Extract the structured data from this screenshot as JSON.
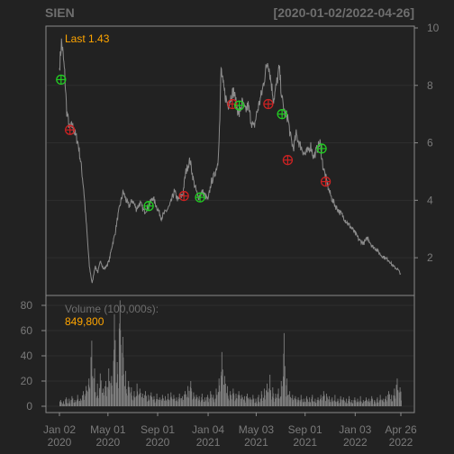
{
  "colors": {
    "background": "#222222",
    "frame": "#8a8a8a",
    "price_line": "#8c8c8c",
    "volume_bar": "#7d7d7d",
    "grid": "#2e2e2e",
    "last_label": "#ffa500",
    "buy_marker": "#22cc22",
    "sell_marker": "#cc2222",
    "text": "#7a7a7a"
  },
  "chart_data": {
    "type": "line",
    "title": "SIEN",
    "date_range": "[2020-01-02/2022-04-26]",
    "last_label": "Last 1.43",
    "x_ticks": [
      {
        "date": "2020-01-02",
        "line1": "Jan 02",
        "line2": "2020"
      },
      {
        "date": "2020-05-01",
        "line1": "May 01",
        "line2": "2020"
      },
      {
        "date": "2020-09-01",
        "line1": "Sep 01",
        "line2": "2020"
      },
      {
        "date": "2021-01-04",
        "line1": "Jan 04",
        "line2": "2021"
      },
      {
        "date": "2021-05-03",
        "line1": "May 03",
        "line2": "2021"
      },
      {
        "date": "2021-09-01",
        "line1": "Sep 01",
        "line2": "2021"
      },
      {
        "date": "2022-01-03",
        "line1": "Jan 03",
        "line2": "2022"
      },
      {
        "date": "2022-04-26",
        "line1": "Apr 26",
        "line2": "2022"
      }
    ],
    "price_axis": {
      "ticks": [
        2,
        4,
        6,
        8,
        10
      ],
      "ylim": [
        1.0,
        10.0
      ]
    },
    "price_series": {
      "name": "SIEN",
      "points": [
        [
          "2020-01-02",
          8.6
        ],
        [
          "2020-01-07",
          9.5
        ],
        [
          "2020-01-10",
          9.2
        ],
        [
          "2020-01-15",
          8.4
        ],
        [
          "2020-01-20",
          7.1
        ],
        [
          "2020-01-27",
          6.5
        ],
        [
          "2020-02-03",
          6.6
        ],
        [
          "2020-02-10",
          6.3
        ],
        [
          "2020-02-17",
          6.0
        ],
        [
          "2020-02-24",
          5.3
        ],
        [
          "2020-03-02",
          4.4
        ],
        [
          "2020-03-09",
          3.1
        ],
        [
          "2020-03-16",
          1.7
        ],
        [
          "2020-03-23",
          1.1
        ],
        [
          "2020-03-30",
          1.7
        ],
        [
          "2020-04-06",
          1.5
        ],
        [
          "2020-04-13",
          1.9
        ],
        [
          "2020-04-20",
          1.6
        ],
        [
          "2020-04-27",
          1.7
        ],
        [
          "2020-05-04",
          1.9
        ],
        [
          "2020-05-11",
          2.4
        ],
        [
          "2020-05-18",
          2.8
        ],
        [
          "2020-05-25",
          3.4
        ],
        [
          "2020-06-01",
          3.9
        ],
        [
          "2020-06-08",
          4.3
        ],
        [
          "2020-06-15",
          4.0
        ],
        [
          "2020-06-22",
          3.8
        ],
        [
          "2020-07-01",
          4.0
        ],
        [
          "2020-07-10",
          3.7
        ],
        [
          "2020-07-20",
          3.9
        ],
        [
          "2020-07-30",
          3.6
        ],
        [
          "2020-08-10",
          3.8
        ],
        [
          "2020-08-20",
          4.1
        ],
        [
          "2020-09-01",
          3.7
        ],
        [
          "2020-09-10",
          3.4
        ],
        [
          "2020-09-21",
          3.6
        ],
        [
          "2020-10-01",
          3.8
        ],
        [
          "2020-10-12",
          4.3
        ],
        [
          "2020-10-22",
          4.0
        ],
        [
          "2020-11-02",
          4.2
        ],
        [
          "2020-11-10",
          5.0
        ],
        [
          "2020-11-20",
          5.4
        ],
        [
          "2020-11-30",
          4.6
        ],
        [
          "2020-12-10",
          4.1
        ],
        [
          "2020-12-21",
          4.3
        ],
        [
          "2021-01-04",
          4.0
        ],
        [
          "2021-01-11",
          4.6
        ],
        [
          "2021-01-20",
          4.9
        ],
        [
          "2021-01-28",
          5.3
        ],
        [
          "2021-02-02",
          6.8
        ],
        [
          "2021-02-05",
          8.6
        ],
        [
          "2021-02-10",
          8.0
        ],
        [
          "2021-02-16",
          7.6
        ],
        [
          "2021-02-22",
          7.3
        ],
        [
          "2021-03-01",
          7.6
        ],
        [
          "2021-03-08",
          7.8
        ],
        [
          "2021-03-15",
          7.3
        ],
        [
          "2021-03-22",
          7.0
        ],
        [
          "2021-03-29",
          7.4
        ],
        [
          "2021-04-06",
          7.1
        ],
        [
          "2021-04-13",
          7.3
        ],
        [
          "2021-04-20",
          6.8
        ],
        [
          "2021-04-27",
          6.5
        ],
        [
          "2021-05-04",
          7.0
        ],
        [
          "2021-05-11",
          7.4
        ],
        [
          "2021-05-18",
          7.8
        ],
        [
          "2021-05-25",
          8.4
        ],
        [
          "2021-06-01",
          8.9
        ],
        [
          "2021-06-08",
          8.2
        ],
        [
          "2021-06-15",
          7.5
        ],
        [
          "2021-06-22",
          8.0
        ],
        [
          "2021-06-29",
          8.6
        ],
        [
          "2021-07-06",
          7.5
        ],
        [
          "2021-07-13",
          7.0
        ],
        [
          "2021-07-20",
          6.9
        ],
        [
          "2021-07-27",
          6.2
        ],
        [
          "2021-08-03",
          5.8
        ],
        [
          "2021-08-10",
          6.3
        ],
        [
          "2021-08-17",
          6.0
        ],
        [
          "2021-08-24",
          5.8
        ],
        [
          "2021-08-31",
          5.6
        ],
        [
          "2021-09-08",
          5.7
        ],
        [
          "2021-09-15",
          5.9
        ],
        [
          "2021-09-22",
          5.5
        ],
        [
          "2021-10-01",
          5.8
        ],
        [
          "2021-10-08",
          6.0
        ],
        [
          "2021-10-15",
          5.2
        ],
        [
          "2021-10-22",
          4.8
        ],
        [
          "2021-10-29",
          4.4
        ],
        [
          "2021-11-05",
          4.1
        ],
        [
          "2021-11-15",
          3.8
        ],
        [
          "2021-11-25",
          3.6
        ],
        [
          "2021-12-06",
          3.4
        ],
        [
          "2021-12-15",
          3.2
        ],
        [
          "2021-12-27",
          3.0
        ],
        [
          "2022-01-05",
          2.8
        ],
        [
          "2022-01-14",
          2.6
        ],
        [
          "2022-01-24",
          2.5
        ],
        [
          "2022-02-03",
          2.7
        ],
        [
          "2022-02-14",
          2.4
        ],
        [
          "2022-02-24",
          2.3
        ],
        [
          "2022-03-07",
          2.1
        ],
        [
          "2022-03-17",
          2.0
        ],
        [
          "2022-03-28",
          1.9
        ],
        [
          "2022-04-07",
          1.7
        ],
        [
          "2022-04-18",
          1.6
        ],
        [
          "2022-04-26",
          1.43
        ]
      ]
    },
    "signals": [
      {
        "type": "buy",
        "date": "2020-01-06",
        "value": 8.2
      },
      {
        "type": "sell",
        "date": "2020-01-28",
        "value": 6.45
      },
      {
        "type": "buy",
        "date": "2020-08-10",
        "value": 3.8
      },
      {
        "type": "sell",
        "date": "2020-11-05",
        "value": 4.15
      },
      {
        "type": "buy",
        "date": "2020-12-15",
        "value": 4.1
      },
      {
        "type": "sell",
        "date": "2021-03-05",
        "value": 7.35
      },
      {
        "type": "buy",
        "date": "2021-03-22",
        "value": 7.3
      },
      {
        "type": "sell",
        "date": "2021-06-02",
        "value": 7.35
      },
      {
        "type": "buy",
        "date": "2021-07-06",
        "value": 7.0
      },
      {
        "type": "sell",
        "date": "2021-07-20",
        "value": 5.4
      },
      {
        "type": "buy",
        "date": "2021-10-12",
        "value": 5.8
      },
      {
        "type": "sell",
        "date": "2021-10-22",
        "value": 4.65
      }
    ],
    "volume": {
      "label": "Volume (100,000s):",
      "last_value": "849,800",
      "ticks": [
        0,
        20,
        40,
        60,
        80
      ],
      "ylim": [
        0,
        85
      ],
      "bars": [
        [
          "2020-01-02",
          5
        ],
        [
          "2020-01-09",
          4
        ],
        [
          "2020-01-16",
          7
        ],
        [
          "2020-01-23",
          6
        ],
        [
          "2020-01-30",
          8
        ],
        [
          "2020-02-06",
          5
        ],
        [
          "2020-02-13",
          9
        ],
        [
          "2020-02-20",
          6
        ],
        [
          "2020-02-27",
          12
        ],
        [
          "2020-03-05",
          16
        ],
        [
          "2020-03-12",
          22
        ],
        [
          "2020-03-19",
          52
        ],
        [
          "2020-03-26",
          30
        ],
        [
          "2020-04-02",
          18
        ],
        [
          "2020-04-09",
          26
        ],
        [
          "2020-04-16",
          14
        ],
        [
          "2020-04-23",
          20
        ],
        [
          "2020-04-30",
          30
        ],
        [
          "2020-05-07",
          24
        ],
        [
          "2020-05-14",
          73
        ],
        [
          "2020-05-21",
          35
        ],
        [
          "2020-05-28",
          84
        ],
        [
          "2020-06-04",
          55
        ],
        [
          "2020-06-11",
          28
        ],
        [
          "2020-06-18",
          20
        ],
        [
          "2020-06-25",
          15
        ],
        [
          "2020-07-02",
          12
        ],
        [
          "2020-07-09",
          18
        ],
        [
          "2020-07-16",
          14
        ],
        [
          "2020-07-23",
          10
        ],
        [
          "2020-07-30",
          12
        ],
        [
          "2020-08-06",
          9
        ],
        [
          "2020-08-13",
          11
        ],
        [
          "2020-08-20",
          8
        ],
        [
          "2020-08-27",
          10
        ],
        [
          "2020-09-03",
          7
        ],
        [
          "2020-09-10",
          9
        ],
        [
          "2020-09-17",
          8
        ],
        [
          "2020-09-24",
          10
        ],
        [
          "2020-10-01",
          11
        ],
        [
          "2020-10-08",
          9
        ],
        [
          "2020-10-15",
          7
        ],
        [
          "2020-10-22",
          10
        ],
        [
          "2020-10-29",
          8
        ],
        [
          "2020-11-05",
          12
        ],
        [
          "2020-11-12",
          16
        ],
        [
          "2020-11-19",
          20
        ],
        [
          "2020-11-26",
          11
        ],
        [
          "2020-12-03",
          9
        ],
        [
          "2020-12-10",
          8
        ],
        [
          "2020-12-17",
          10
        ],
        [
          "2020-12-24",
          7
        ],
        [
          "2020-12-31",
          9
        ],
        [
          "2021-01-07",
          12
        ],
        [
          "2021-01-14",
          9
        ],
        [
          "2021-01-21",
          14
        ],
        [
          "2021-01-28",
          22
        ],
        [
          "2021-02-04",
          43
        ],
        [
          "2021-02-11",
          24
        ],
        [
          "2021-02-18",
          16
        ],
        [
          "2021-02-25",
          12
        ],
        [
          "2021-03-04",
          14
        ],
        [
          "2021-03-11",
          10
        ],
        [
          "2021-03-18",
          12
        ],
        [
          "2021-03-25",
          9
        ],
        [
          "2021-04-01",
          8
        ],
        [
          "2021-04-08",
          10
        ],
        [
          "2021-04-15",
          7
        ],
        [
          "2021-04-22",
          9
        ],
        [
          "2021-04-29",
          6
        ],
        [
          "2021-05-06",
          9
        ],
        [
          "2021-05-13",
          12
        ],
        [
          "2021-05-20",
          14
        ],
        [
          "2021-05-27",
          18
        ],
        [
          "2021-06-03",
          25
        ],
        [
          "2021-06-10",
          15
        ],
        [
          "2021-06-17",
          10
        ],
        [
          "2021-06-24",
          14
        ],
        [
          "2021-07-01",
          20
        ],
        [
          "2021-07-08",
          58
        ],
        [
          "2021-07-15",
          22
        ],
        [
          "2021-07-22",
          12
        ],
        [
          "2021-07-29",
          9
        ],
        [
          "2021-08-05",
          8
        ],
        [
          "2021-08-12",
          7
        ],
        [
          "2021-08-19",
          9
        ],
        [
          "2021-08-26",
          6
        ],
        [
          "2021-09-02",
          8
        ],
        [
          "2021-09-09",
          7
        ],
        [
          "2021-09-16",
          9
        ],
        [
          "2021-09-23",
          6
        ],
        [
          "2021-09-30",
          7
        ],
        [
          "2021-10-07",
          9
        ],
        [
          "2021-10-14",
          12
        ],
        [
          "2021-10-21",
          10
        ],
        [
          "2021-10-28",
          8
        ],
        [
          "2021-11-04",
          7
        ],
        [
          "2021-11-11",
          9
        ],
        [
          "2021-11-18",
          6
        ],
        [
          "2021-11-25",
          8
        ],
        [
          "2021-12-02",
          7
        ],
        [
          "2021-12-09",
          6
        ],
        [
          "2021-12-16",
          8
        ],
        [
          "2021-12-23",
          5
        ],
        [
          "2021-12-30",
          7
        ],
        [
          "2022-01-06",
          6
        ],
        [
          "2022-01-13",
          8
        ],
        [
          "2022-01-20",
          5
        ],
        [
          "2022-01-27",
          7
        ],
        [
          "2022-02-03",
          6
        ],
        [
          "2022-02-10",
          8
        ],
        [
          "2022-02-17",
          5
        ],
        [
          "2022-02-24",
          7
        ],
        [
          "2022-03-03",
          9
        ],
        [
          "2022-03-10",
          6
        ],
        [
          "2022-03-17",
          8
        ],
        [
          "2022-03-24",
          12
        ],
        [
          "2022-03-31",
          9
        ],
        [
          "2022-04-07",
          14
        ],
        [
          "2022-04-14",
          22
        ],
        [
          "2022-04-21",
          15
        ],
        [
          "2022-04-26",
          8
        ]
      ]
    }
  }
}
